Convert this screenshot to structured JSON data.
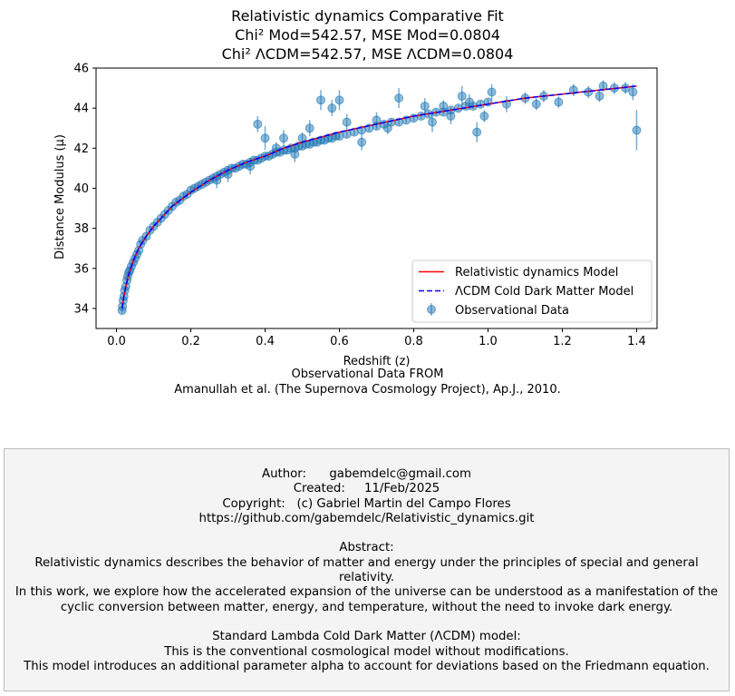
{
  "figure": {
    "title_lines": [
      "Relativistic dynamics Comparative Fit",
      "Chi² Mod=542.57, MSE Mod=0.0804",
      "Chi² ΛCDM=542.57, MSE ΛCDM=0.0804"
    ],
    "caption_lines": [
      "Observational Data FROM",
      "Amanullah et al. (The Supernova Cosmology Project), Ap.J., 2010."
    ]
  },
  "chart_data": {
    "type": "scatter",
    "xlabel": "Redshift (z)",
    "ylabel": "Distance Modulus (μ)",
    "xlim": [
      -0.055,
      1.455
    ],
    "ylim": [
      33.0,
      46.0
    ],
    "xticks": [
      "0.0",
      "0.2",
      "0.4",
      "0.6",
      "0.8",
      "1.0",
      "1.2",
      "1.4"
    ],
    "yticks": [
      "34",
      "36",
      "38",
      "40",
      "42",
      "44",
      "46"
    ],
    "grid": false,
    "legend_position": "lower-right",
    "legend": [
      {
        "label": "Relativistic dynamics Model",
        "style": "solid-line",
        "color": "#ff0000"
      },
      {
        "label": "ΛCDM Cold Dark Matter Model",
        "style": "dashed-line",
        "color": "#0000ff"
      },
      {
        "label": "Observational Data",
        "style": "errorbar-marker",
        "color": "#1f77b4"
      }
    ],
    "series": [
      {
        "name": "Observational Data",
        "kind": "errorbar",
        "color": "#1f77b4",
        "points": [
          [
            0.015,
            33.9,
            0.15
          ],
          [
            0.016,
            34.1,
            0.15
          ],
          [
            0.018,
            34.4,
            0.15
          ],
          [
            0.02,
            34.6,
            0.15
          ],
          [
            0.022,
            34.9,
            0.15
          ],
          [
            0.025,
            35.1,
            0.15
          ],
          [
            0.028,
            35.4,
            0.15
          ],
          [
            0.03,
            35.6,
            0.15
          ],
          [
            0.033,
            35.8,
            0.15
          ],
          [
            0.036,
            35.9,
            0.15
          ],
          [
            0.04,
            36.1,
            0.15
          ],
          [
            0.045,
            36.3,
            0.15
          ],
          [
            0.05,
            36.5,
            0.15
          ],
          [
            0.055,
            36.7,
            0.15
          ],
          [
            0.06,
            36.9,
            0.15
          ],
          [
            0.065,
            37.2,
            0.15
          ],
          [
            0.07,
            37.4,
            0.15
          ],
          [
            0.08,
            37.6,
            0.15
          ],
          [
            0.09,
            37.9,
            0.15
          ],
          [
            0.1,
            38.1,
            0.15
          ],
          [
            0.11,
            38.3,
            0.15
          ],
          [
            0.12,
            38.5,
            0.15
          ],
          [
            0.13,
            38.7,
            0.15
          ],
          [
            0.14,
            38.9,
            0.15
          ],
          [
            0.15,
            39.1,
            0.15
          ],
          [
            0.16,
            39.3,
            0.15
          ],
          [
            0.17,
            39.4,
            0.15
          ],
          [
            0.18,
            39.6,
            0.15
          ],
          [
            0.19,
            39.7,
            0.15
          ],
          [
            0.2,
            39.9,
            0.15
          ],
          [
            0.21,
            40.0,
            0.15
          ],
          [
            0.22,
            40.1,
            0.15
          ],
          [
            0.23,
            40.2,
            0.15
          ],
          [
            0.24,
            40.3,
            0.15
          ],
          [
            0.25,
            40.4,
            0.15
          ],
          [
            0.26,
            40.5,
            0.15
          ],
          [
            0.27,
            40.6,
            0.15
          ],
          [
            0.28,
            40.7,
            0.15
          ],
          [
            0.29,
            40.8,
            0.15
          ],
          [
            0.3,
            40.9,
            0.15
          ],
          [
            0.31,
            41.0,
            0.15
          ],
          [
            0.32,
            41.0,
            0.15
          ],
          [
            0.33,
            41.1,
            0.15
          ],
          [
            0.34,
            41.2,
            0.15
          ],
          [
            0.35,
            41.2,
            0.15
          ],
          [
            0.36,
            41.3,
            0.15
          ],
          [
            0.37,
            41.4,
            0.15
          ],
          [
            0.38,
            41.4,
            0.15
          ],
          [
            0.39,
            41.5,
            0.15
          ],
          [
            0.4,
            41.6,
            0.15
          ],
          [
            0.41,
            41.6,
            0.15
          ],
          [
            0.42,
            41.7,
            0.15
          ],
          [
            0.43,
            41.8,
            0.15
          ],
          [
            0.44,
            41.8,
            0.15
          ],
          [
            0.45,
            41.9,
            0.15
          ],
          [
            0.46,
            41.9,
            0.15
          ],
          [
            0.47,
            42.0,
            0.15
          ],
          [
            0.48,
            42.0,
            0.15
          ],
          [
            0.49,
            42.1,
            0.15
          ],
          [
            0.5,
            42.1,
            0.15
          ],
          [
            0.51,
            42.2,
            0.15
          ],
          [
            0.52,
            42.2,
            0.15
          ],
          [
            0.53,
            42.3,
            0.15
          ],
          [
            0.54,
            42.3,
            0.15
          ],
          [
            0.55,
            42.4,
            0.15
          ],
          [
            0.56,
            42.4,
            0.15
          ],
          [
            0.57,
            42.5,
            0.15
          ],
          [
            0.58,
            42.5,
            0.15
          ],
          [
            0.59,
            42.6,
            0.15
          ],
          [
            0.6,
            42.6,
            0.15
          ],
          [
            0.62,
            42.7,
            0.15
          ],
          [
            0.64,
            42.8,
            0.15
          ],
          [
            0.66,
            42.9,
            0.15
          ],
          [
            0.68,
            43.0,
            0.15
          ],
          [
            0.7,
            43.1,
            0.15
          ],
          [
            0.72,
            43.2,
            0.15
          ],
          [
            0.74,
            43.3,
            0.15
          ],
          [
            0.76,
            43.3,
            0.15
          ],
          [
            0.78,
            43.4,
            0.15
          ],
          [
            0.8,
            43.5,
            0.15
          ],
          [
            0.82,
            43.6,
            0.15
          ],
          [
            0.84,
            43.7,
            0.15
          ],
          [
            0.86,
            43.8,
            0.15
          ],
          [
            0.88,
            43.8,
            0.15
          ],
          [
            0.9,
            43.9,
            0.15
          ],
          [
            0.92,
            44.0,
            0.15
          ],
          [
            0.94,
            44.1,
            0.15
          ],
          [
            0.96,
            44.1,
            0.15
          ],
          [
            0.98,
            44.2,
            0.15
          ],
          [
            1.0,
            44.3,
            0.15
          ],
          [
            0.38,
            43.2,
            0.4
          ],
          [
            0.55,
            44.4,
            0.5
          ],
          [
            0.58,
            44.0,
            0.4
          ],
          [
            0.6,
            44.4,
            0.5
          ],
          [
            0.76,
            44.5,
            0.5
          ],
          [
            0.97,
            42.8,
            0.5
          ],
          [
            0.52,
            43.0,
            0.4
          ],
          [
            0.45,
            42.5,
            0.4
          ],
          [
            0.4,
            42.5,
            0.6
          ],
          [
            0.66,
            42.3,
            0.4
          ],
          [
            0.48,
            41.7,
            0.4
          ],
          [
            0.3,
            40.7,
            0.4
          ],
          [
            0.27,
            40.4,
            0.4
          ],
          [
            0.85,
            43.3,
            0.5
          ],
          [
            0.9,
            43.6,
            0.4
          ],
          [
            0.93,
            44.6,
            0.5
          ],
          [
            1.01,
            44.8,
            0.4
          ],
          [
            1.05,
            44.2,
            0.4
          ],
          [
            1.1,
            44.5,
            0.3
          ],
          [
            1.13,
            44.2,
            0.3
          ],
          [
            1.15,
            44.6,
            0.3
          ],
          [
            1.19,
            44.3,
            0.3
          ],
          [
            1.23,
            44.9,
            0.3
          ],
          [
            1.27,
            44.8,
            0.3
          ],
          [
            1.3,
            44.6,
            0.3
          ],
          [
            1.31,
            45.1,
            0.3
          ],
          [
            1.34,
            45.0,
            0.3
          ],
          [
            1.37,
            45.0,
            0.3
          ],
          [
            1.39,
            44.8,
            0.4
          ],
          [
            1.4,
            42.9,
            1.0
          ],
          [
            0.36,
            41.1,
            0.4
          ],
          [
            0.43,
            42.0,
            0.3
          ],
          [
            0.5,
            42.5,
            0.3
          ],
          [
            0.7,
            43.4,
            0.4
          ],
          [
            0.73,
            43.0,
            0.3
          ],
          [
            0.83,
            44.1,
            0.4
          ],
          [
            0.88,
            44.1,
            0.3
          ],
          [
            0.95,
            44.3,
            0.4
          ],
          [
            0.99,
            43.6,
            0.3
          ],
          [
            0.62,
            43.3,
            0.4
          ]
        ]
      },
      {
        "name": "Relativistic dynamics Model",
        "kind": "line",
        "color": "#ff0000",
        "x": [
          0.015,
          0.02,
          0.03,
          0.04,
          0.05,
          0.06,
          0.08,
          0.1,
          0.12,
          0.15,
          0.2,
          0.25,
          0.3,
          0.35,
          0.4,
          0.45,
          0.5,
          0.6,
          0.7,
          0.8,
          0.9,
          1.0,
          1.1,
          1.2,
          1.3,
          1.4
        ],
        "y": [
          34.0,
          34.6,
          35.5,
          36.1,
          36.6,
          37.0,
          37.6,
          38.1,
          38.5,
          39.1,
          39.8,
          40.4,
          40.9,
          41.3,
          41.6,
          42.0,
          42.3,
          42.8,
          43.2,
          43.6,
          43.9,
          44.2,
          44.5,
          44.7,
          44.9,
          45.1
        ]
      },
      {
        "name": "ΛCDM Cold Dark Matter Model",
        "kind": "dashed-line",
        "color": "#0000ff",
        "x": [
          0.015,
          0.02,
          0.03,
          0.04,
          0.05,
          0.06,
          0.08,
          0.1,
          0.12,
          0.15,
          0.2,
          0.25,
          0.3,
          0.35,
          0.4,
          0.45,
          0.5,
          0.6,
          0.7,
          0.8,
          0.9,
          1.0,
          1.1,
          1.2,
          1.3,
          1.4
        ],
        "y": [
          34.0,
          34.6,
          35.5,
          36.1,
          36.6,
          37.0,
          37.6,
          38.1,
          38.5,
          39.1,
          39.8,
          40.4,
          40.9,
          41.3,
          41.6,
          42.0,
          42.3,
          42.8,
          43.2,
          43.6,
          43.9,
          44.2,
          44.5,
          44.7,
          44.9,
          45.1
        ]
      }
    ]
  },
  "info": {
    "author": "Author:      gabemdelc@gmail.com",
    "created": "Created:     11/Feb/2025",
    "copyright": "Copyright:   (c) Gabriel Martin del Campo Flores",
    "repo": "https://github.com/gabemdelc/Relativistic_dynamics.git",
    "abstract_heading": "Abstract:",
    "abstract_p1": "Relativistic dynamics describes the behavior of matter and energy under the principles of special and general relativity.",
    "abstract_p2": "In this work, we explore how the accelerated expansion of the universe can be understood as a manifestation of the cyclic conversion between matter, energy, and temperature, without the need to invoke dark energy.",
    "model_heading": "Standard Lambda Cold Dark Matter (ΛCDM) model:",
    "model_line1": "This is the conventional cosmological model without modifications.",
    "model_line2": "This model introduces an additional parameter alpha to account for deviations based on the Friedmann equation."
  },
  "colors": {
    "data": "#1f77b4",
    "model": "#ff0000",
    "lcdm": "#0000ff",
    "info_bg": "#f4f4f4"
  }
}
